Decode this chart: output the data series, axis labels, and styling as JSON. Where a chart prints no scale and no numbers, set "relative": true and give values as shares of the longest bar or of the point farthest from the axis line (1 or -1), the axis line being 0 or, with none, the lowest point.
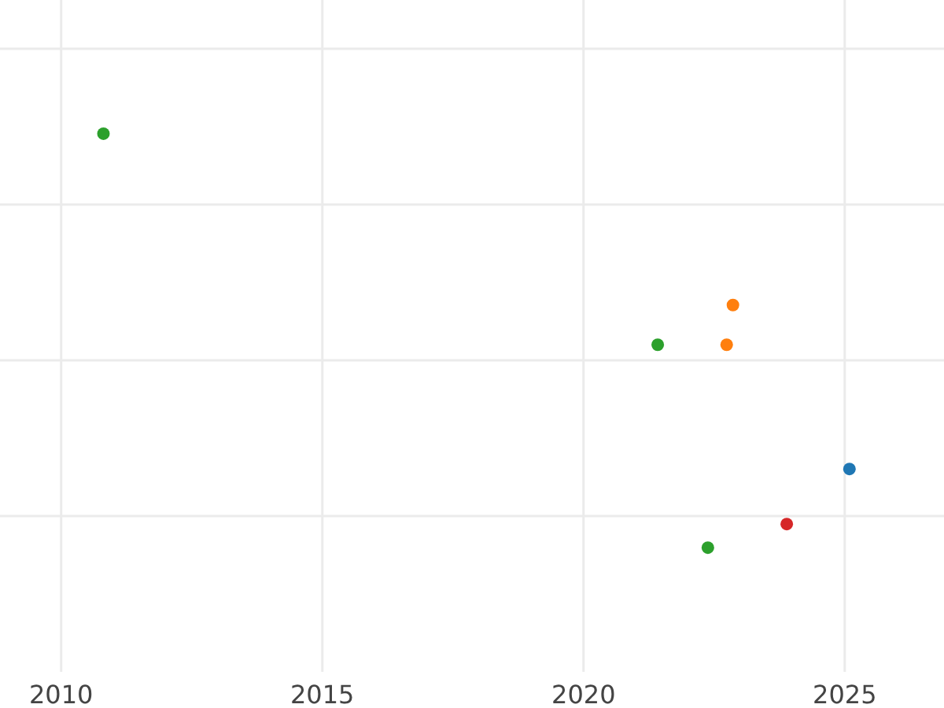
{
  "chart_data": {
    "type": "scatter",
    "relative": true,
    "xlim": [
      2008.83,
      2026.9
    ],
    "xticks": [
      2010,
      2015,
      2020,
      2025
    ],
    "grid": true,
    "marker": "circle",
    "series": [
      {
        "color": "#1f77b4",
        "x": [
          2025.09
        ],
        "values": [
          0.19
        ]
      },
      {
        "color": "#ff7f0e",
        "x": [
          2022.86,
          2022.74
        ],
        "values": [
          0.586,
          0.49
        ]
      },
      {
        "color": "#2ca02c",
        "x": [
          2010.81,
          2021.42,
          2022.38
        ],
        "values": [
          1,
          0.49,
          0
        ]
      },
      {
        "color": "#d62728",
        "x": [
          2023.89
        ],
        "values": [
          0.057
        ]
      }
    ]
  }
}
